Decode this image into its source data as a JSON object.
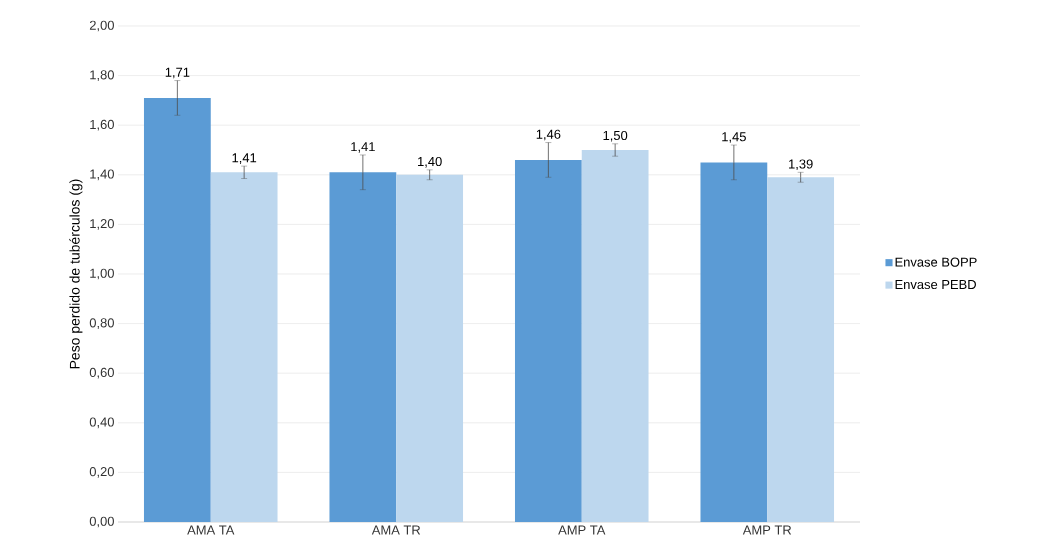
{
  "chart_data": {
    "type": "bar",
    "ylabel": "Peso perdido de tubérculos (g)",
    "categories": [
      "AMA TA",
      "AMA TR",
      "AMP TA",
      "AMP TR"
    ],
    "series": [
      {
        "name": "Envase BOPP",
        "color": "#5b9bd5",
        "values": [
          1.71,
          1.41,
          1.46,
          1.45
        ],
        "errors": [
          0.07,
          0.07,
          0.07,
          0.07
        ],
        "value_labels": [
          "1,71",
          "1,41",
          "1,46",
          "1,45"
        ]
      },
      {
        "name": "Envase PEBD",
        "color": "#bdd7ee",
        "values": [
          1.41,
          1.4,
          1.5,
          1.39
        ],
        "errors": [
          0.025,
          0.02,
          0.025,
          0.02
        ],
        "value_labels": [
          "1,41",
          "1,40",
          "1,50",
          "1,39"
        ]
      }
    ],
    "ylim": [
      0,
      2
    ],
    "yticks": [
      {
        "value": 0,
        "label": "0,00"
      },
      {
        "value": 0.2,
        "label": "0,20"
      },
      {
        "value": 0.4,
        "label": "0,40"
      },
      {
        "value": 0.6,
        "label": "0,60"
      },
      {
        "value": 0.8,
        "label": "0,80"
      },
      {
        "value": 1.0,
        "label": "1,00"
      },
      {
        "value": 1.2,
        "label": "1,20"
      },
      {
        "value": 1.4,
        "label": "1,40"
      },
      {
        "value": 1.6,
        "label": "1,60"
      },
      {
        "value": 1.8,
        "label": "1,80"
      },
      {
        "value": 2.0,
        "label": "2,00"
      }
    ],
    "grid": "y",
    "legend": "right"
  }
}
